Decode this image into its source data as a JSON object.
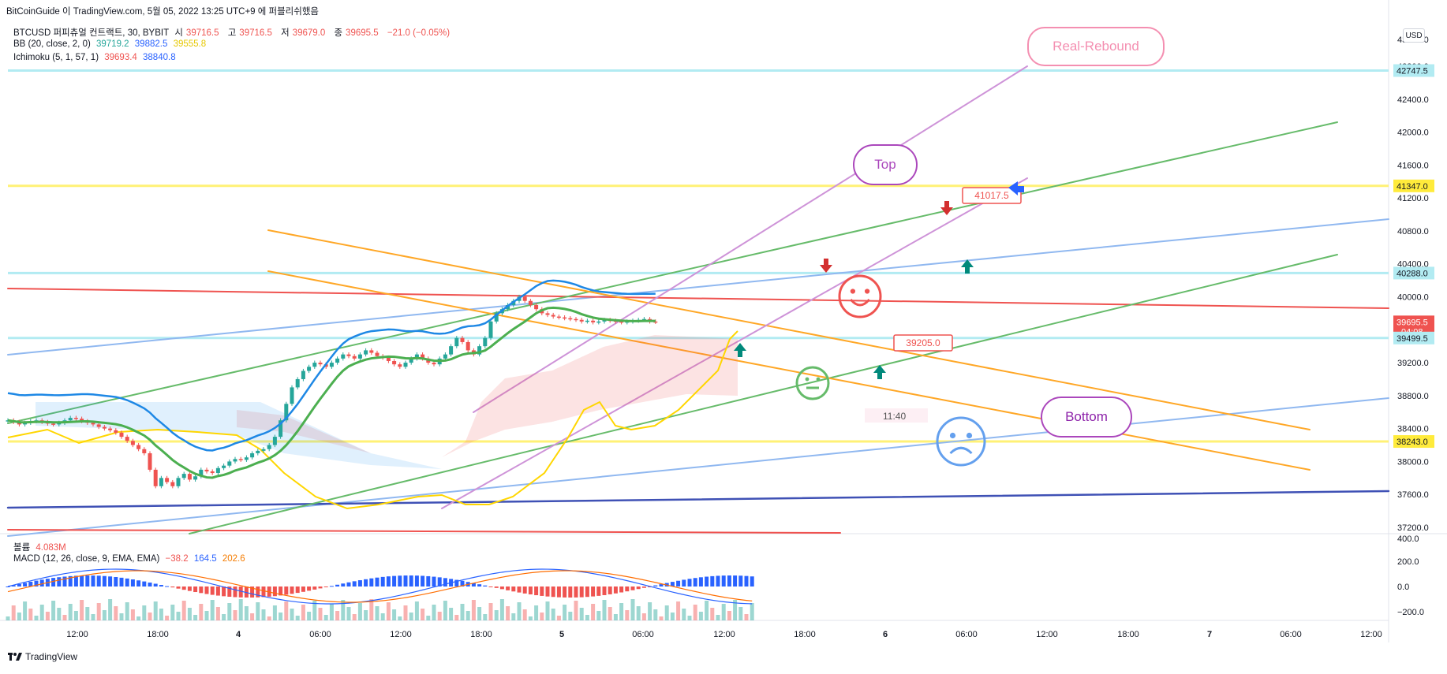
{
  "header": {
    "author": "BitCoinGuide",
    "published": "이 TradingView.com, 5월 05, 2022 13:25 UTC+9 에 퍼블리쉬했음"
  },
  "legend": {
    "symbol": "BTCUSD 퍼피츄얼 컨트랙트, 30, BYBIT",
    "o_lbl": "시",
    "o": "39716.5",
    "h_lbl": "고",
    "h": "39716.5",
    "l_lbl": "저",
    "l": "39679.0",
    "c_lbl": "종",
    "c": "39695.5",
    "chg": "−21.0 (−0.05%)",
    "bb_label": "BB (20, close, 2, 0)",
    "bb_vals": [
      "39719.2",
      "39882.5",
      "39555.8"
    ],
    "ichi_label": "Ichimoku (5, 1, 57, 1)",
    "ichi_vals": [
      "39693.4",
      "38840.8"
    ],
    "vol_label": "볼륨",
    "vol_val": "4.083M",
    "macd_label": "MACD (12, 26, close, 9, EMA, EMA)",
    "macd_vals": [
      "−38.2",
      "164.5",
      "202.6"
    ]
  },
  "currency": "USD",
  "footer": {
    "brand": "TradingView"
  },
  "colors": {
    "up": "#26a69a",
    "down": "#ef5350",
    "bb_mid": "#4caf50",
    "bb_band": "#1e88e5",
    "cloud": "#ffd600",
    "orange": "#ffa726",
    "lightblue": "#90b8f0",
    "green_line": "#66bb6a",
    "violet": "#ce93d8",
    "red_line": "#ef5350",
    "navy": "#3f51b5"
  },
  "chart_data": {
    "type": "candlestick",
    "yaxis": {
      "ticks": [
        "42800.0",
        "42400.0",
        "42000.0",
        "41600.0",
        "41200.0",
        "40800.0",
        "40400.0",
        "40000.0",
        "39200.0",
        "38800.0",
        "38400.0",
        "38000.0",
        "37600.0",
        "37200.0"
      ],
      "top_tick": "43200.0"
    },
    "xaxis": {
      "ticks": [
        "12:00",
        "18:00",
        "4",
        "06:00",
        "12:00",
        "18:00",
        "5",
        "06:00",
        "12:00",
        "18:00",
        "6",
        "06:00",
        "12:00",
        "18:00",
        "7",
        "06:00",
        "12:00"
      ]
    },
    "price_labels": [
      {
        "value": "42747.5",
        "style": "teal"
      },
      {
        "value": "41347.0",
        "style": "yellow"
      },
      {
        "value": "40288.0",
        "style": "teal"
      },
      {
        "value": "39695.5",
        "style": "red",
        "sub": "04:08"
      },
      {
        "value": "39499.5",
        "style": "teal"
      },
      {
        "value": "38243.0",
        "style": "yellow"
      }
    ],
    "horizontal_levels": [
      {
        "price": 42747.5,
        "color": "teal"
      },
      {
        "price": 41347.0,
        "color": "yellow"
      },
      {
        "price": 40288.0,
        "color": "teal"
      },
      {
        "price": 39499.5,
        "color": "teal"
      },
      {
        "price": 38243.0,
        "color": "yellow"
      }
    ],
    "annotations": {
      "real_rebound": "Real-Rebound",
      "top": "Top",
      "bottom": "Bottom",
      "price_tag_1": "41017.5",
      "price_tag_2": "39205.0",
      "time_tag": "11:40"
    },
    "macd_axis": [
      "400.0",
      "200.0",
      "0.0",
      "−200.0"
    ]
  }
}
